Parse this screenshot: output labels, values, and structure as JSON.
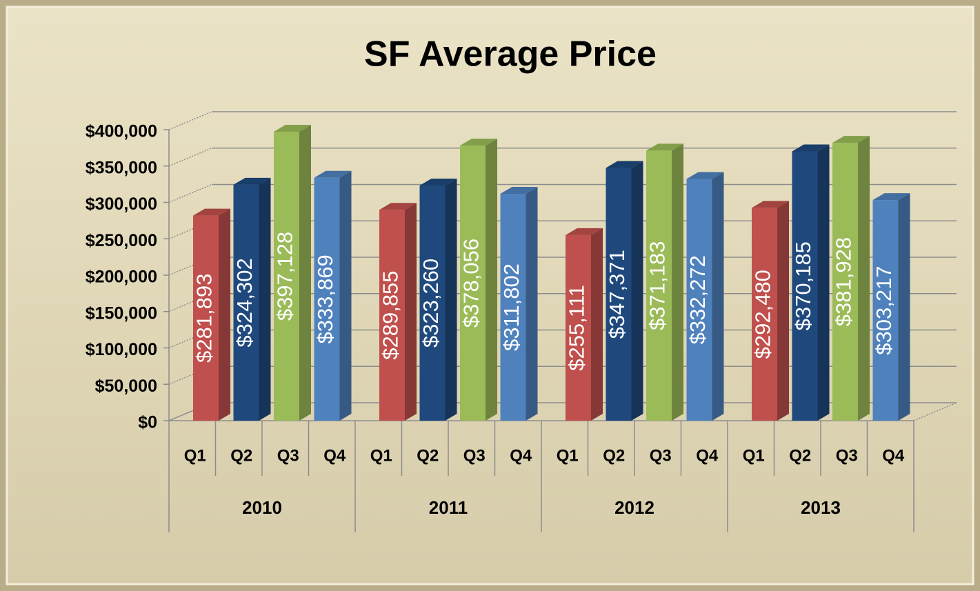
{
  "chart_data": {
    "type": "bar",
    "title": "SF Average Price",
    "categories": [
      "2010",
      "2011",
      "2012",
      "2013"
    ],
    "series": [
      {
        "name": "Q1",
        "color": "#c0504d",
        "values": [
          281893,
          289855,
          255111,
          292480
        ],
        "value_labels": [
          "$281,893",
          "$289,855",
          "$255,111",
          "$292,480"
        ]
      },
      {
        "name": "Q2",
        "color": "#1f497d",
        "values": [
          324302,
          323260,
          347371,
          370185
        ],
        "value_labels": [
          "$324,302",
          "$323,260",
          "$347,371",
          "$370,185"
        ]
      },
      {
        "name": "Q3",
        "color": "#9bbb59",
        "values": [
          397128,
          378056,
          371183,
          381928
        ],
        "value_labels": [
          "$397,128",
          "$378,056",
          "$371,183",
          "$381,928"
        ]
      },
      {
        "name": "Q4",
        "color": "#4f81bd",
        "values": [
          333869,
          311802,
          332272,
          303217
        ],
        "value_labels": [
          "$333,869",
          "$311,802",
          "$332,272",
          "$303,217"
        ]
      }
    ],
    "ylim": [
      0,
      400000
    ],
    "yticks": [
      {
        "value": 0,
        "label": "$0"
      },
      {
        "value": 50000,
        "label": "$50,000"
      },
      {
        "value": 100000,
        "label": "$100,000"
      },
      {
        "value": 150000,
        "label": "$150,000"
      },
      {
        "value": 200000,
        "label": "$200,000"
      },
      {
        "value": 250000,
        "label": "$250,000"
      },
      {
        "value": 300000,
        "label": "$300,000"
      },
      {
        "value": 350000,
        "label": "$350,000"
      },
      {
        "value": 400000,
        "label": "$400,000"
      }
    ],
    "grid": true
  }
}
